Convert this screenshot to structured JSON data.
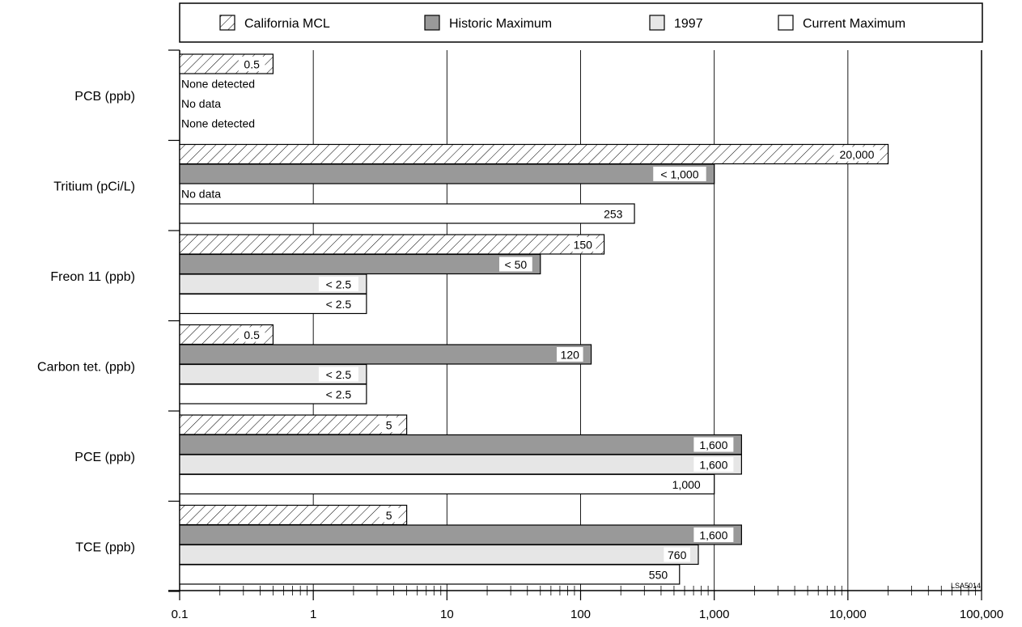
{
  "chart_data": {
    "type": "bar",
    "orientation": "horizontal",
    "x_scale": "log",
    "xlim": [
      0.1,
      100000
    ],
    "x_ticks": [
      "0.1",
      "1",
      "10",
      "100",
      "1,000",
      "10,000",
      "100,000"
    ],
    "grid": "vertical lines at decades",
    "legend_position": "top",
    "legend": [
      "California MCL",
      "Historic Maximum",
      "1997",
      "Current Maximum"
    ],
    "colors": {
      "California MCL": "#ffffff",
      "Historic Maximum": "#999999",
      "1997": "#e6e6e6",
      "Current Maximum": "#ffffff"
    },
    "series_styles": [
      "hatched",
      "dark gray",
      "light gray",
      "white"
    ],
    "corner_code": "LSA5014",
    "categories": [
      "PCB (ppb)",
      "Tritium (pCi/L)",
      "Freon 11 (ppb)",
      "Carbon tet. (ppb)",
      "PCE (ppb)",
      "TCE (ppb)"
    ],
    "series": [
      {
        "name": "California MCL",
        "values": [
          0.5,
          20000,
          150,
          0.5,
          5,
          5
        ],
        "labels": [
          "0.5",
          "20,000",
          "150",
          "0.5",
          "5",
          "5"
        ]
      },
      {
        "name": "Historic Maximum",
        "values": [
          null,
          1000,
          50,
          120,
          1600,
          1600
        ],
        "labels": [
          "None detected",
          "< 1,000",
          "< 50",
          "120",
          "1,600",
          "1,600"
        ]
      },
      {
        "name": "1997",
        "values": [
          null,
          null,
          2.5,
          2.5,
          1600,
          760
        ],
        "labels": [
          "No data",
          "No data",
          "< 2.5",
          "< 2.5",
          "1,600",
          "760"
        ]
      },
      {
        "name": "Current Maximum",
        "values": [
          null,
          253,
          2.5,
          2.5,
          1000,
          550
        ],
        "labels": [
          "None detected",
          "253",
          "< 2.5",
          "< 2.5",
          "1,000",
          "550"
        ]
      }
    ]
  }
}
